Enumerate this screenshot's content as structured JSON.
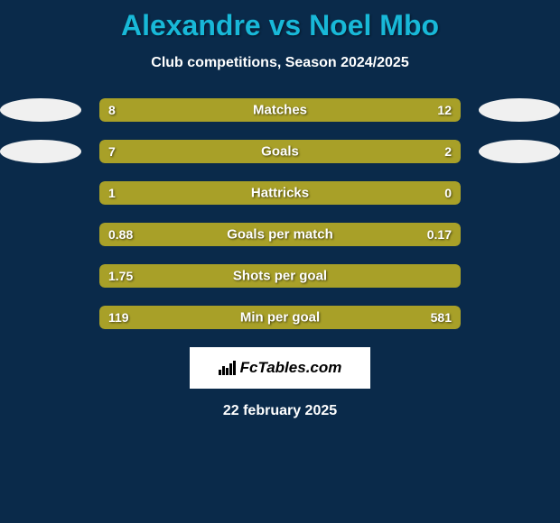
{
  "title": "Alexandre vs Noel Mbo",
  "subtitle": "Club competitions, Season 2024/2025",
  "date": "22 february 2025",
  "logo_text": "FcTables.com",
  "colors": {
    "background": "#0a2a4a",
    "title": "#18b8d8",
    "left_bar": "#a8a028",
    "right_bar": "#a8a028",
    "text": "#ffffff",
    "ellipse": "#f0f0f0"
  },
  "bars": [
    {
      "label": "Matches",
      "left": "8",
      "right": "12",
      "left_pct": 40,
      "right_pct": 60,
      "show_ellipses": true
    },
    {
      "label": "Goals",
      "left": "7",
      "right": "2",
      "left_pct": 78,
      "right_pct": 22,
      "show_ellipses": true
    },
    {
      "label": "Hattricks",
      "left": "1",
      "right": "0",
      "left_pct": 80,
      "right_pct": 20,
      "show_ellipses": false
    },
    {
      "label": "Goals per match",
      "left": "0.88",
      "right": "0.17",
      "left_pct": 84,
      "right_pct": 16,
      "show_ellipses": false
    },
    {
      "label": "Shots per goal",
      "left": "1.75",
      "right": "",
      "left_pct": 100,
      "right_pct": 0,
      "show_ellipses": false
    },
    {
      "label": "Min per goal",
      "left": "119",
      "right": "581",
      "left_pct": 17,
      "right_pct": 83,
      "show_ellipses": false
    }
  ]
}
